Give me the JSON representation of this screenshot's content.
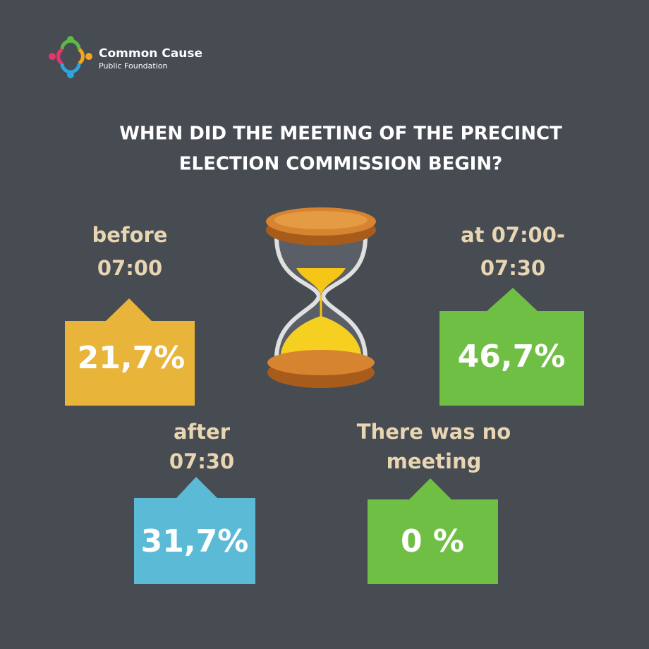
{
  "logo": {
    "name": "Common Cause",
    "subtitle": "Public Foundation"
  },
  "title": [
    "WHEN DID THE MEETING OF THE PRECINCT",
    "ELECTION COMMISSION BEGIN?"
  ],
  "items": [
    {
      "label": [
        "before",
        "07:00"
      ],
      "value": "21,7%"
    },
    {
      "label": [
        "at 07:00-",
        "07:30"
      ],
      "value": "46,7%"
    },
    {
      "label": [
        "after",
        "07:30"
      ],
      "value": "31,7%"
    },
    {
      "label": [
        "There was no",
        "meeting"
      ],
      "value": "0 %"
    }
  ]
}
